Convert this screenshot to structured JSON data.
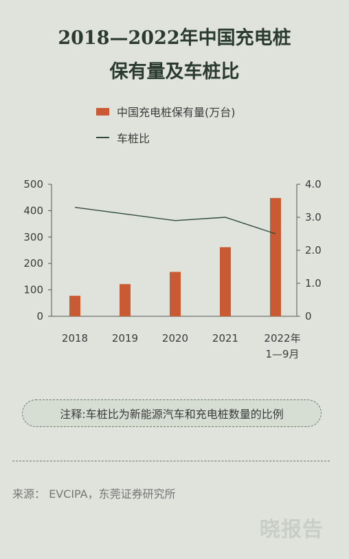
{
  "title": {
    "line1": "2018—2022年中国充电桩",
    "line2": "保有量及车桩比"
  },
  "legend": {
    "bar_label": "中国充电桩保有量(万台)",
    "line_label": "车桩比"
  },
  "colors": {
    "bar": "#c95a33",
    "line": "#2f4a36",
    "axis": "#555555"
  },
  "chart_data": {
    "type": "bar",
    "categories": [
      "2018",
      "2019",
      "2020",
      "2021",
      "2022年\n1—9月"
    ],
    "series": [
      {
        "name": "中国充电桩保有量(万台)",
        "type": "bar",
        "axis": "left",
        "values": [
          77.7,
          121.9,
          168.1,
          261.7,
          448
        ]
      },
      {
        "name": "车桩比",
        "type": "line",
        "axis": "right",
        "values": [
          3.3,
          3.1,
          2.9,
          3.0,
          2.5
        ]
      }
    ],
    "ylim_left": [
      0,
      500
    ],
    "yticks_left": [
      "0",
      "100",
      "200",
      "300",
      "400",
      "500"
    ],
    "ylim_right": [
      0,
      4.0
    ],
    "yticks_right": [
      "0",
      "1.0",
      "2.0",
      "3.0",
      "4.0"
    ],
    "grid": false
  },
  "note": "注释:车桩比为新能源汽车和充电桩数量的比例",
  "source": "来源： EVCIPA，东莞证券研究所",
  "watermark": "晓报告"
}
